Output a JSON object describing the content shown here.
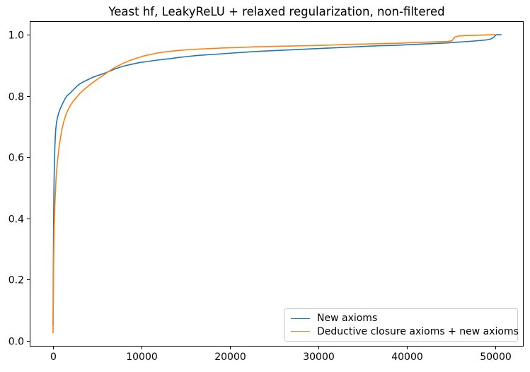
{
  "chart_data": {
    "type": "line",
    "title": "Yeast hf, LeakyReLU + relaxed regularization, non-filtered",
    "xlabel": "",
    "ylabel": "",
    "xlim": [
      -2640,
      53200
    ],
    "ylim": [
      -0.019,
      1.044
    ],
    "xticks": [
      0,
      10000,
      20000,
      30000,
      40000,
      50000
    ],
    "xticklabels": [
      "0",
      "10000",
      "20000",
      "30000",
      "40000",
      "50000"
    ],
    "yticks": [
      0.0,
      0.2,
      0.4,
      0.6,
      0.8,
      1.0
    ],
    "yticklabels": [
      "0.0",
      "0.2",
      "0.4",
      "0.6",
      "0.8",
      "1.0"
    ],
    "grid": false,
    "legend_position": "lower right",
    "series": [
      {
        "name": "New axioms",
        "color": "#1f77b4",
        "points": [
          [
            0,
            0.05
          ],
          [
            50,
            0.35
          ],
          [
            100,
            0.5
          ],
          [
            150,
            0.58
          ],
          [
            200,
            0.63
          ],
          [
            250,
            0.665
          ],
          [
            300,
            0.69
          ],
          [
            400,
            0.715
          ],
          [
            500,
            0.73
          ],
          [
            650,
            0.745
          ],
          [
            800,
            0.757
          ],
          [
            1000,
            0.77
          ],
          [
            1200,
            0.782
          ],
          [
            1400,
            0.793
          ],
          [
            1600,
            0.801
          ],
          [
            1900,
            0.808
          ],
          [
            2200,
            0.817
          ],
          [
            2600,
            0.829
          ],
          [
            3000,
            0.839
          ],
          [
            3500,
            0.847
          ],
          [
            4000,
            0.854
          ],
          [
            4500,
            0.861
          ],
          [
            5000,
            0.866
          ],
          [
            5500,
            0.871
          ],
          [
            6000,
            0.876
          ],
          [
            6500,
            0.882
          ],
          [
            7000,
            0.888
          ],
          [
            7600,
            0.894
          ],
          [
            8200,
            0.899
          ],
          [
            9000,
            0.904
          ],
          [
            9800,
            0.909
          ],
          [
            10600,
            0.912
          ],
          [
            11500,
            0.916
          ],
          [
            12400,
            0.919
          ],
          [
            13300,
            0.922
          ],
          [
            14300,
            0.926
          ],
          [
            15300,
            0.929
          ],
          [
            16300,
            0.932
          ],
          [
            17300,
            0.934
          ],
          [
            18300,
            0.936
          ],
          [
            19300,
            0.938
          ],
          [
            20300,
            0.94
          ],
          [
            21300,
            0.942
          ],
          [
            22300,
            0.944
          ],
          [
            23500,
            0.946
          ],
          [
            25000,
            0.948
          ],
          [
            26500,
            0.95
          ],
          [
            28000,
            0.952
          ],
          [
            29500,
            0.954
          ],
          [
            31000,
            0.956
          ],
          [
            32500,
            0.958
          ],
          [
            34000,
            0.96
          ],
          [
            35500,
            0.962
          ],
          [
            37000,
            0.964
          ],
          [
            38500,
            0.965
          ],
          [
            40000,
            0.967
          ],
          [
            41500,
            0.969
          ],
          [
            43000,
            0.971
          ],
          [
            44500,
            0.973
          ],
          [
            45500,
            0.975
          ],
          [
            46500,
            0.977
          ],
          [
            47500,
            0.979
          ],
          [
            48300,
            0.981
          ],
          [
            49000,
            0.983
          ],
          [
            49500,
            0.986
          ],
          [
            49800,
            0.991
          ],
          [
            50000,
            0.997
          ],
          [
            50100,
            1.0
          ],
          [
            50700,
            1.0
          ]
        ]
      },
      {
        "name": "Deductive closure axioms + new axioms",
        "color": "#ff7f0e",
        "points": [
          [
            0,
            0.025
          ],
          [
            60,
            0.25
          ],
          [
            120,
            0.36
          ],
          [
            200,
            0.44
          ],
          [
            300,
            0.51
          ],
          [
            400,
            0.555
          ],
          [
            550,
            0.6
          ],
          [
            700,
            0.638
          ],
          [
            850,
            0.665
          ],
          [
            1000,
            0.69
          ],
          [
            1200,
            0.715
          ],
          [
            1450,
            0.738
          ],
          [
            1700,
            0.755
          ],
          [
            2000,
            0.771
          ],
          [
            2300,
            0.783
          ],
          [
            2700,
            0.797
          ],
          [
            3100,
            0.81
          ],
          [
            3600,
            0.823
          ],
          [
            4100,
            0.835
          ],
          [
            4600,
            0.846
          ],
          [
            5100,
            0.856
          ],
          [
            5600,
            0.866
          ],
          [
            6100,
            0.876
          ],
          [
            6600,
            0.886
          ],
          [
            7200,
            0.896
          ],
          [
            7900,
            0.906
          ],
          [
            8600,
            0.915
          ],
          [
            9400,
            0.923
          ],
          [
            10200,
            0.93
          ],
          [
            11100,
            0.936
          ],
          [
            12000,
            0.941
          ],
          [
            13000,
            0.945
          ],
          [
            14000,
            0.948
          ],
          [
            15200,
            0.951
          ],
          [
            16500,
            0.953
          ],
          [
            18000,
            0.955
          ],
          [
            19500,
            0.957
          ],
          [
            21000,
            0.958
          ],
          [
            22500,
            0.96
          ],
          [
            24000,
            0.961
          ],
          [
            25500,
            0.962
          ],
          [
            27000,
            0.963
          ],
          [
            28500,
            0.964
          ],
          [
            30000,
            0.965
          ],
          [
            31500,
            0.966
          ],
          [
            33000,
            0.968
          ],
          [
            34500,
            0.969
          ],
          [
            36000,
            0.97
          ],
          [
            37500,
            0.971
          ],
          [
            39000,
            0.972
          ],
          [
            40500,
            0.974
          ],
          [
            42000,
            0.975
          ],
          [
            43500,
            0.977
          ],
          [
            44600,
            0.978
          ],
          [
            45100,
            0.98
          ],
          [
            45400,
            0.992
          ],
          [
            45900,
            0.996
          ],
          [
            46500,
            0.997
          ],
          [
            47800,
            0.998
          ],
          [
            49000,
            0.999
          ],
          [
            50000,
            1.0
          ]
        ]
      }
    ]
  }
}
